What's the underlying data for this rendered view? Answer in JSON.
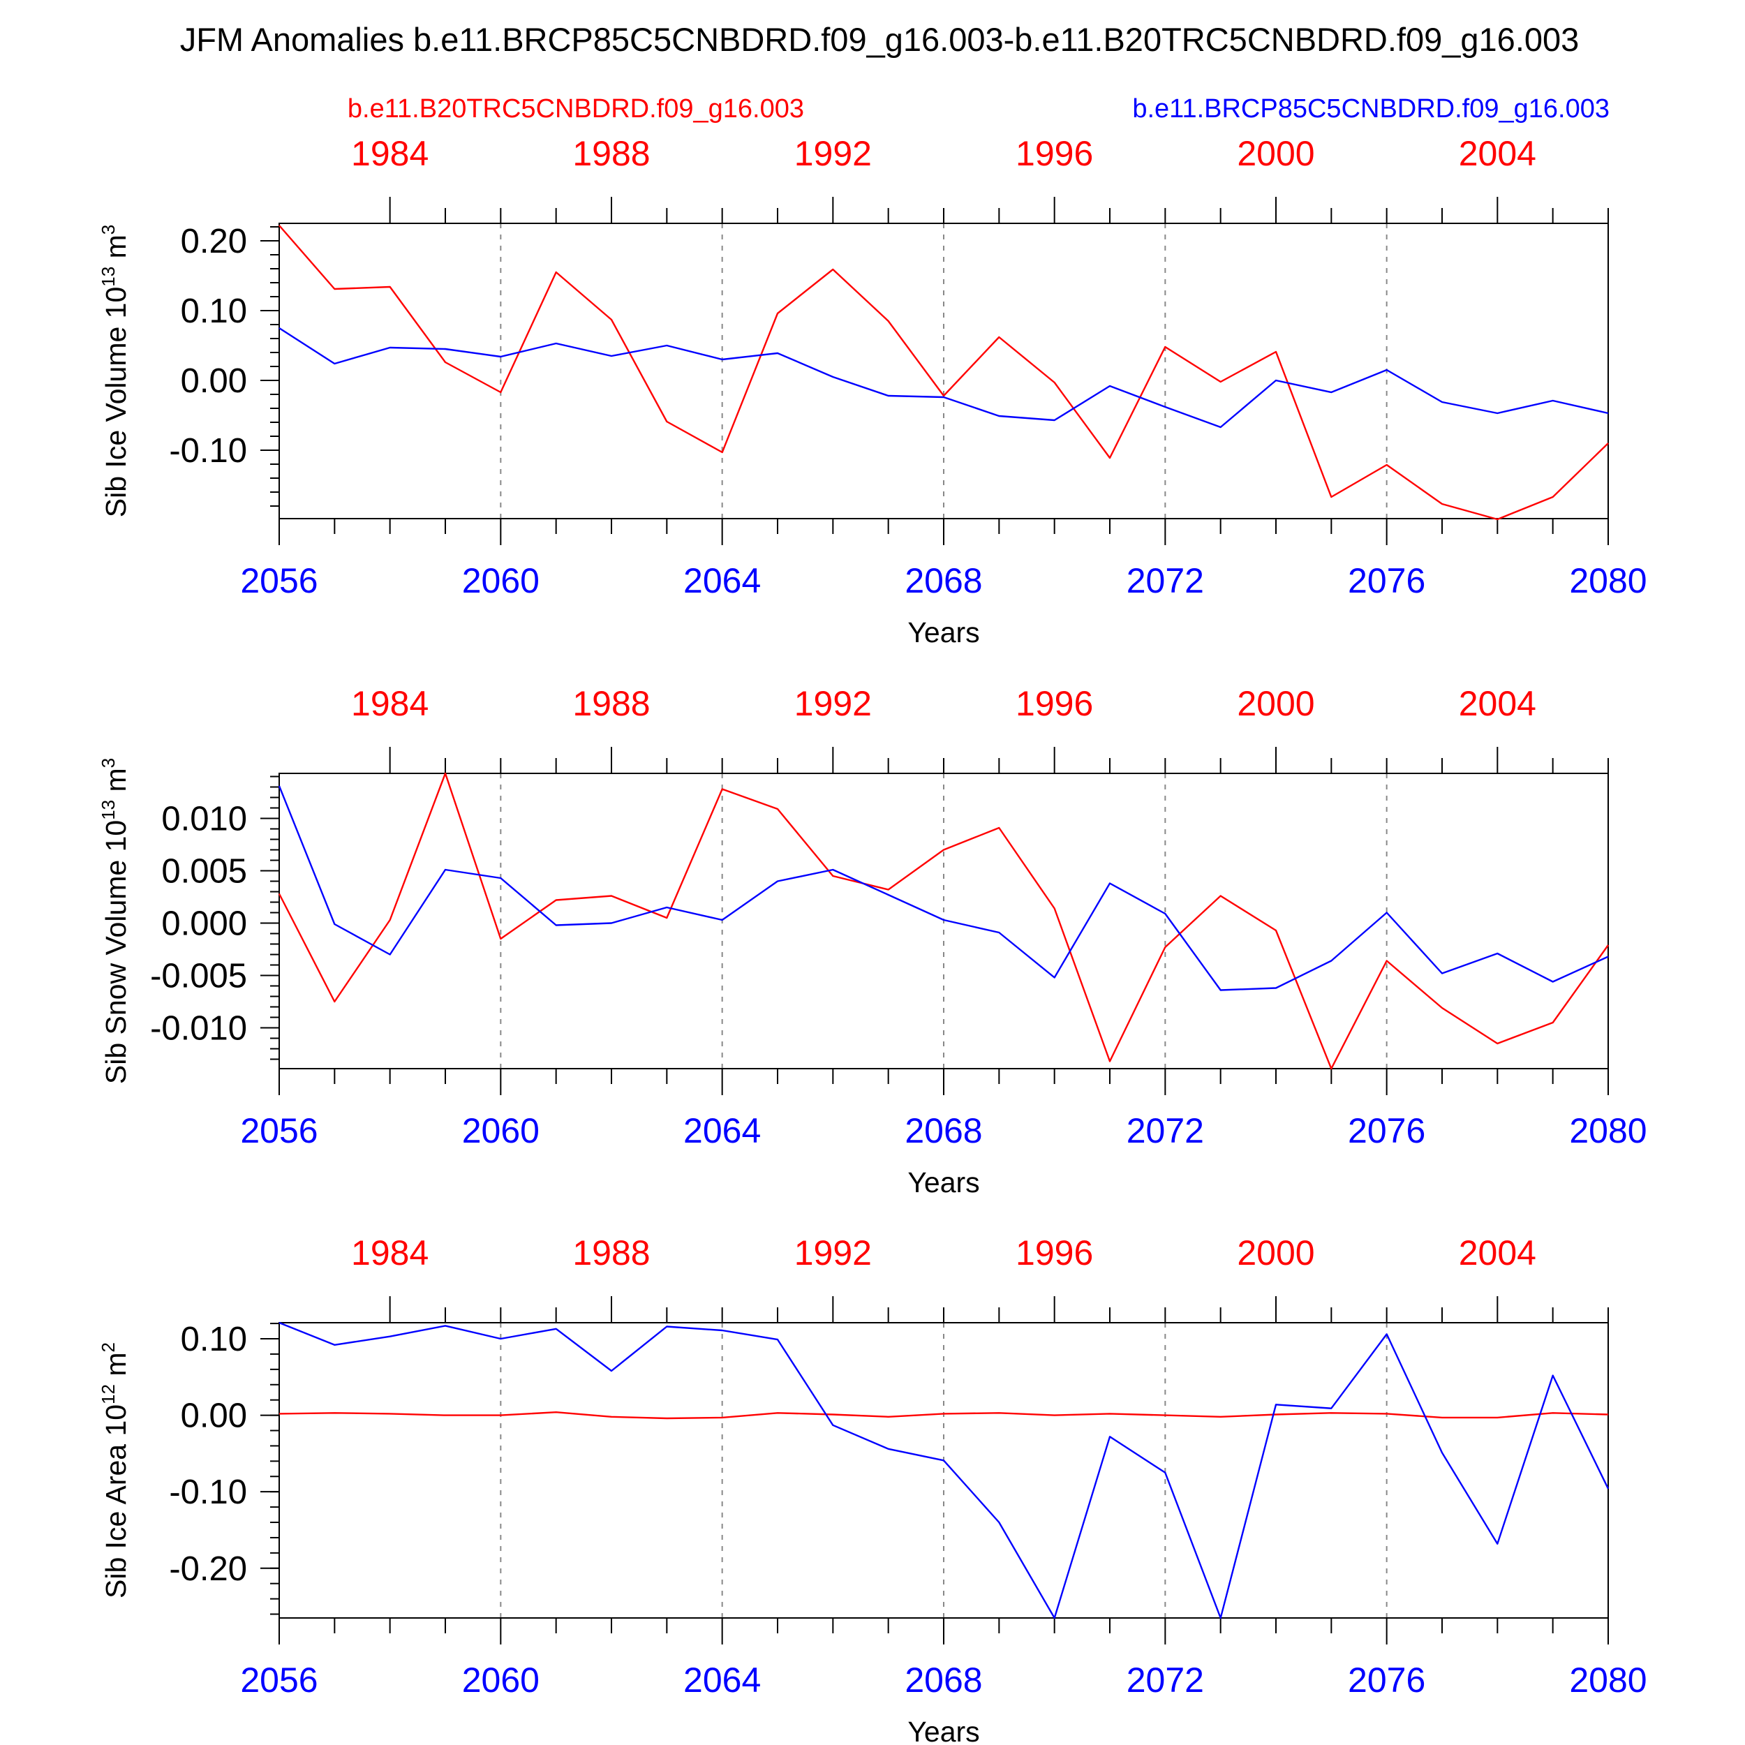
{
  "title": "JFM Anomalies b.e11.BRCP85C5CNBDRD.f09_g16.003-b.e11.B20TRC5CNBDRD.f09_g16.003",
  "legend": {
    "left": "b.e11.B20TRC5CNBDRD.f09_g16.003",
    "right": "b.e11.BRCP85C5CNBDRD.f09_g16.003"
  },
  "colors": {
    "historical": "#ff0000",
    "future": "#0000ff",
    "axes": "#000000",
    "grid": "#888888"
  },
  "chart_data": [
    {
      "type": "line",
      "ylabel": "Sib Ice Volume 10",
      "ylabel_exp": "13",
      "ylabel_unit": " m",
      "ylabel_unit_exp": "3",
      "xlabel": "Years",
      "ylim": [
        -0.198,
        0.225
      ],
      "yticks": [
        0.2,
        0.1,
        0.0,
        -0.1
      ],
      "ytick_labels": [
        "0.20",
        "0.10",
        "0.00",
        "-0.10"
      ],
      "yminor_step": 0.02,
      "xlim": [
        2056,
        2080
      ],
      "x": [
        2056,
        2057,
        2058,
        2059,
        2060,
        2061,
        2062,
        2063,
        2064,
        2065,
        2066,
        2067,
        2068,
        2069,
        2070,
        2071,
        2072,
        2073,
        2074,
        2075,
        2076,
        2077,
        2078,
        2079,
        2080
      ],
      "bottom_ticks": [
        "2056",
        "2060",
        "2064",
        "2068",
        "2072",
        "2076",
        "2080"
      ],
      "top_ticks": [
        "1984",
        "1988",
        "1992",
        "1996",
        "2000",
        "2004"
      ],
      "series": [
        {
          "name": "b.e11.B20TRC5CNBDRD.f09_g16.003",
          "color": "red",
          "values": [
            0.222,
            0.131,
            0.134,
            0.026,
            -0.017,
            0.155,
            0.087,
            -0.059,
            -0.103,
            0.096,
            0.159,
            0.085,
            -0.022,
            0.062,
            -0.003,
            -0.111,
            0.048,
            -0.002,
            0.041,
            -0.167,
            -0.121,
            -0.177,
            -0.199,
            -0.167,
            -0.09
          ]
        },
        {
          "name": "b.e11.BRCP85C5CNBDRD.f09_g16.003",
          "color": "blue",
          "values": [
            0.075,
            0.024,
            0.047,
            0.045,
            0.034,
            0.053,
            0.035,
            0.05,
            0.03,
            0.039,
            0.005,
            -0.022,
            -0.024,
            -0.051,
            -0.057,
            -0.008,
            -0.038,
            -0.067,
            0.0,
            -0.017,
            0.015,
            -0.031,
            -0.047,
            -0.029,
            -0.047
          ]
        }
      ]
    },
    {
      "type": "line",
      "ylabel": "Sib Snow Volume 10",
      "ylabel_exp": "13",
      "ylabel_unit": " m",
      "ylabel_unit_exp": "3",
      "xlabel": "Years",
      "ylim": [
        -0.0139,
        0.0143
      ],
      "yticks": [
        0.01,
        0.005,
        0.0,
        -0.005,
        -0.01
      ],
      "ytick_labels": [
        "0.010",
        "0.005",
        "0.000",
        "-0.005",
        "-0.010"
      ],
      "yminor_step": 0.001,
      "xlim": [
        2056,
        2080
      ],
      "x": [
        2056,
        2057,
        2058,
        2059,
        2060,
        2061,
        2062,
        2063,
        2064,
        2065,
        2066,
        2067,
        2068,
        2069,
        2070,
        2071,
        2072,
        2073,
        2074,
        2075,
        2076,
        2077,
        2078,
        2079,
        2080
      ],
      "bottom_ticks": [
        "2056",
        "2060",
        "2064",
        "2068",
        "2072",
        "2076",
        "2080"
      ],
      "top_ticks": [
        "1984",
        "1988",
        "1992",
        "1996",
        "2000",
        "2004"
      ],
      "series": [
        {
          "name": "b.e11.B20TRC5CNBDRD.f09_g16.003",
          "color": "red",
          "values": [
            0.0028,
            -0.0075,
            0.0003,
            0.0143,
            -0.0015,
            0.0022,
            0.0026,
            0.0005,
            0.0128,
            0.0109,
            0.0045,
            0.0032,
            0.007,
            0.0091,
            0.0014,
            -0.0132,
            -0.0023,
            0.0026,
            -0.0007,
            -0.0139,
            -0.0036,
            -0.0081,
            -0.0115,
            -0.0095,
            -0.0021
          ]
        },
        {
          "name": "b.e11.BRCP85C5CNBDRD.f09_g16.003",
          "color": "blue",
          "values": [
            0.0131,
            -0.0001,
            -0.003,
            0.0051,
            0.0043,
            -0.0002,
            0.0,
            0.0015,
            0.0003,
            0.004,
            0.0051,
            0.0027,
            0.0003,
            -0.0009,
            -0.0052,
            0.0038,
            0.0009,
            -0.0064,
            -0.0062,
            -0.0036,
            0.001,
            -0.0048,
            -0.0029,
            -0.0056,
            -0.0032
          ]
        }
      ]
    },
    {
      "type": "line",
      "ylabel": "Sib Ice Area 10",
      "ylabel_exp": "12",
      "ylabel_unit": " m",
      "ylabel_unit_exp": "2",
      "xlabel": "Years",
      "ylim": [
        -0.265,
        0.121
      ],
      "yticks": [
        0.1,
        0.0,
        -0.1,
        -0.2
      ],
      "ytick_labels": [
        "0.10",
        "0.00",
        "-0.10",
        "-0.20"
      ],
      "yminor_step": 0.02,
      "xlim": [
        2056,
        2080
      ],
      "x": [
        2056,
        2057,
        2058,
        2059,
        2060,
        2061,
        2062,
        2063,
        2064,
        2065,
        2066,
        2067,
        2068,
        2069,
        2070,
        2071,
        2072,
        2073,
        2074,
        2075,
        2076,
        2077,
        2078,
        2079,
        2080
      ],
      "bottom_ticks": [
        "2056",
        "2060",
        "2064",
        "2068",
        "2072",
        "2076",
        "2080"
      ],
      "top_ticks": [
        "1984",
        "1988",
        "1992",
        "1996",
        "2000",
        "2004"
      ],
      "series": [
        {
          "name": "b.e11.B20TRC5CNBDRD.f09_g16.003",
          "color": "red",
          "values": [
            0.002,
            0.003,
            0.002,
            0.0,
            0.0,
            0.004,
            -0.002,
            -0.004,
            -0.003,
            0.003,
            0.001,
            -0.002,
            0.002,
            0.003,
            0.0,
            0.002,
            0.0,
            -0.002,
            0.001,
            0.003,
            0.002,
            -0.003,
            -0.003,
            0.003,
            0.001
          ]
        },
        {
          "name": "b.e11.BRCP85C5CNBDRD.f09_g16.003",
          "color": "blue",
          "values": [
            0.121,
            0.092,
            0.103,
            0.117,
            0.1,
            0.113,
            0.058,
            0.116,
            0.111,
            0.099,
            -0.013,
            -0.044,
            -0.059,
            -0.14,
            -0.265,
            -0.028,
            -0.075,
            -0.265,
            0.014,
            0.009,
            0.106,
            -0.049,
            -0.168,
            0.052,
            -0.096
          ]
        }
      ]
    }
  ]
}
